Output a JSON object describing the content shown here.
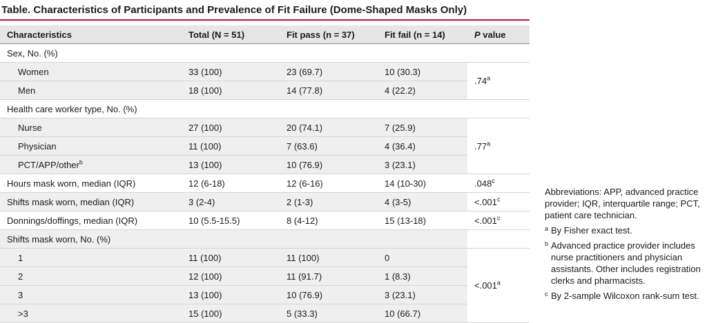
{
  "title": "Table. Characteristics of Participants and Prevalence of Fit Failure (Dome-Shaped Masks Only)",
  "header": {
    "characteristics": "Characteristics",
    "total": "Total (N = 51)",
    "fit_pass": "Fit pass (n = 37)",
    "fit_fail": "Fit fail (n = 14)",
    "p_letter": "P",
    "p_rest": " value"
  },
  "sex": {
    "label": "Sex, No. (%)",
    "women": {
      "label": "Women",
      "total": "33 (100)",
      "pass": "23 (69.7)",
      "fail": "10 (30.3)"
    },
    "men": {
      "label": "Men",
      "total": "18 (100)",
      "pass": "14 (77.8)",
      "fail": "4 (22.2)"
    },
    "p": ".74",
    "p_sup": "a"
  },
  "hcw": {
    "label": "Health care worker type, No. (%)",
    "nurse": {
      "label": "Nurse",
      "total": "27 (100)",
      "pass": "20 (74.1)",
      "fail": "7 (25.9)"
    },
    "physician": {
      "label": "Physician",
      "total": "11 (100)",
      "pass": "7 (63.6)",
      "fail": "4 (36.4)"
    },
    "pct": {
      "label": "PCT/APP/other",
      "sup": "b",
      "total": "13 (100)",
      "pass": "10 (76.9)",
      "fail": "3 (23.1)"
    },
    "p": ".77",
    "p_sup": "a"
  },
  "hours": {
    "label": "Hours mask worn, median (IQR)",
    "total": "12 (6-18)",
    "pass": "12 (6-16)",
    "fail": "14 (10-30)",
    "p": ".048",
    "p_sup": "c"
  },
  "shifts_median": {
    "label": "Shifts mask worn, median (IQR)",
    "total": "3 (2-4)",
    "pass": "2 (1-3)",
    "fail": "4 (3-5)",
    "p": "<.001",
    "p_sup": "c"
  },
  "donnings": {
    "label": "Donnings/doffings, median (IQR)",
    "total": "10 (5.5-15.5)",
    "pass": "8 (4-12)",
    "fail": "15 (13-18)",
    "p": "<.001",
    "p_sup": "c"
  },
  "shifts_no": {
    "label": "Shifts mask worn, No. (%)",
    "rows": [
      {
        "label": "1",
        "total": "11 (100)",
        "pass": "11 (100)",
        "fail": "0"
      },
      {
        "label": "2",
        "total": "12 (100)",
        "pass": "11 (91.7)",
        "fail": "1 (8.3)"
      },
      {
        "label": "3",
        "total": "13 (100)",
        "pass": "10 (76.9)",
        "fail": "3 (23.1)"
      },
      {
        "label": ">3",
        "total": "15 (100)",
        "pass": "5 (33.3)",
        "fail": "10 (66.7)"
      }
    ],
    "p": "<.001",
    "p_sup": "a"
  },
  "notes": {
    "abbreviations": "Abbreviations: APP, advanced practice provider; IQR, interquartile range; PCT, patient care technician.",
    "fn_a_mark": "a",
    "fn_a": "By Fisher exact test.",
    "fn_b_mark": "b",
    "fn_b": "Advanced practice provider includes nurse practitioners and physician assistants. Other includes registration clerks and pharmacists.",
    "fn_c_mark": "c",
    "fn_c": "By 2-sample Wilcoxon rank-sum test."
  },
  "colors": {
    "accent_rule": "#c8102e",
    "header_bg": "#e6e6e6",
    "stripe_bg": "#efefef"
  }
}
